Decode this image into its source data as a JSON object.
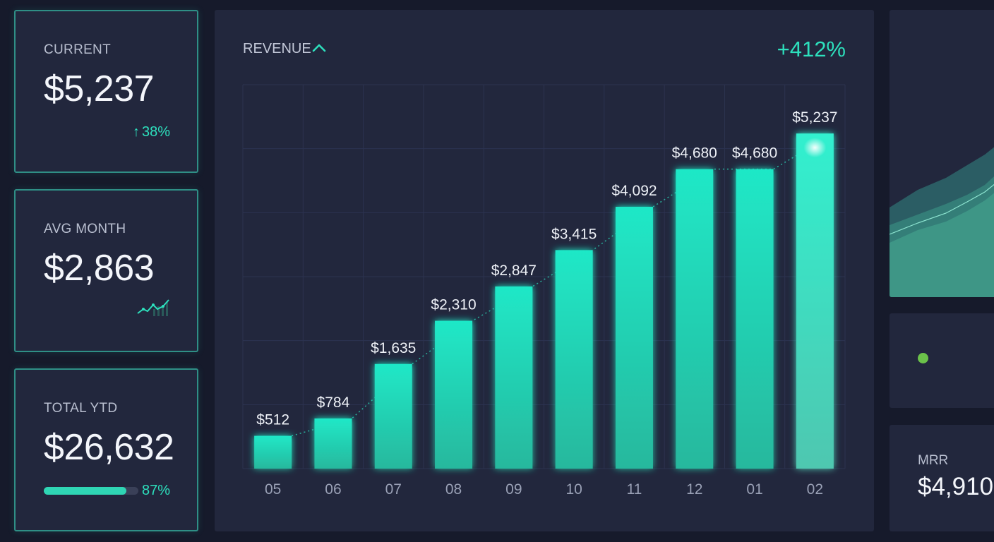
{
  "stats": {
    "current": {
      "label": "CURRENT",
      "value": "$5,237",
      "change": "38%"
    },
    "avg_month": {
      "label": "AVG MONTH",
      "value": "$2,863"
    },
    "total_ytd": {
      "label": "TOTAL YTD",
      "value": "$26,632",
      "progress_percent": 87,
      "progress_label": "87%"
    }
  },
  "revenue_panel": {
    "title": "REVENUE",
    "growth": "+412%"
  },
  "mrr": {
    "label": "MRR",
    "value": "$4,910"
  },
  "colors": {
    "accent": "#2de0bd",
    "bar_top": "#1fe8c7",
    "bar_bottom": "#27b89d",
    "status_dot": "#6bc24a"
  },
  "chart_data": {
    "type": "bar",
    "title": "REVENUE",
    "categories": [
      "05",
      "06",
      "07",
      "08",
      "09",
      "10",
      "11",
      "12",
      "01",
      "02"
    ],
    "values": [
      512,
      784,
      1635,
      2310,
      2847,
      3415,
      4092,
      4680,
      4680,
      5237
    ],
    "data_labels": [
      "$512",
      "$784",
      "$1,635",
      "$2,310",
      "$2,847",
      "$3,415",
      "$4,092",
      "$4,680",
      "$4,680",
      "$5,237"
    ],
    "ylim": [
      0,
      6000
    ],
    "grid": true,
    "trend_line": true
  }
}
